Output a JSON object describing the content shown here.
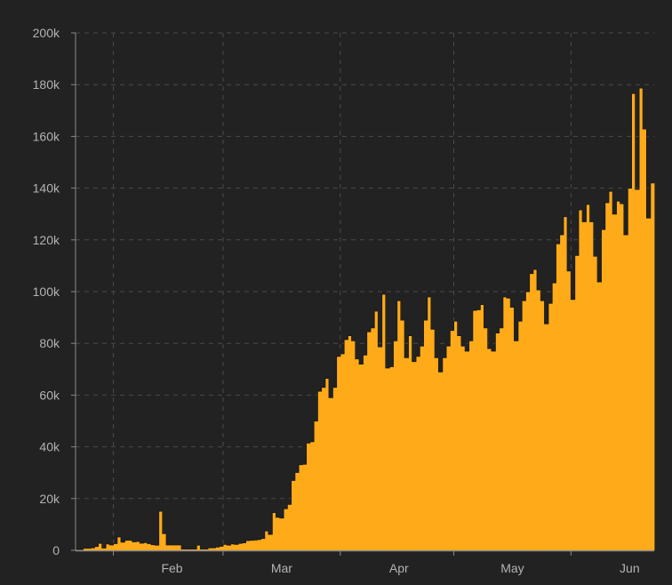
{
  "chart_data": {
    "type": "bar",
    "title": "",
    "xlabel": "",
    "ylabel": "",
    "ylim": [
      0,
      200000
    ],
    "y_ticks": [
      0,
      20000,
      40000,
      60000,
      80000,
      100000,
      120000,
      140000,
      160000,
      180000,
      200000
    ],
    "y_tick_labels": [
      "0",
      "20k",
      "40k",
      "60k",
      "80k",
      "100k",
      "120k",
      "140k",
      "160k",
      "180k",
      "200k"
    ],
    "x_tick_labels": [
      "Feb",
      "Mar",
      "Apr",
      "May",
      "Jun"
    ],
    "grid": true,
    "colors": {
      "bar": "#ffab19",
      "background": "#222222",
      "grid": "#4a4a4a",
      "axis": "#8a8a8a",
      "text": "#b3b3b3"
    },
    "values_k": [
      0.3,
      0.3,
      0.8,
      0.8,
      1.0,
      1.5,
      2.7,
      0.9,
      2.5,
      2.1,
      2.6,
      5.2,
      3.2,
      3.9,
      3.9,
      3.3,
      3.5,
      2.8,
      3.0,
      2.6,
      2.2,
      2.0,
      15.1,
      6.5,
      2.1,
      2.1,
      2.1,
      2.1,
      0.5,
      0.5,
      0.5,
      0.5,
      2.0,
      0.5,
      0.5,
      1.0,
      1.0,
      1.3,
      1.6,
      2.3,
      2.0,
      2.5,
      2.3,
      2.7,
      2.9,
      3.8,
      3.9,
      4.0,
      4.2,
      4.6,
      7.5,
      6.2,
      14.6,
      12.8,
      12.5,
      16.1,
      17.8,
      27.0,
      30.1,
      33.1,
      33.3,
      41.5,
      42.0,
      50.0,
      61.5,
      63.0,
      66.5,
      59.0,
      63.0,
      75.0,
      76,
      81.5,
      83,
      81,
      74,
      72,
      75.5,
      84.5,
      86,
      92.5,
      78.7,
      99,
      70.5,
      71,
      81,
      96.5,
      89,
      74.5,
      83,
      73,
      75,
      79,
      89,
      98,
      85.5,
      74.5,
      69,
      74.5,
      79,
      85,
      88.6,
      83,
      79,
      77,
      81,
      92.8,
      93,
      95,
      86,
      78,
      77,
      84,
      86,
      98,
      97.5,
      94,
      81,
      88.6,
      96.5,
      100,
      107,
      108.6,
      100.7,
      96.5,
      87.6,
      95.5,
      103.4,
      118.5,
      122,
      129,
      108,
      97,
      114,
      131.6,
      127,
      133.7,
      127,
      113.7,
      103.8,
      124,
      134.4,
      138.8,
      130,
      135,
      134,
      122,
      140,
      176.6,
      139.5,
      178.7,
      162.9,
      128.5,
      142
    ]
  }
}
